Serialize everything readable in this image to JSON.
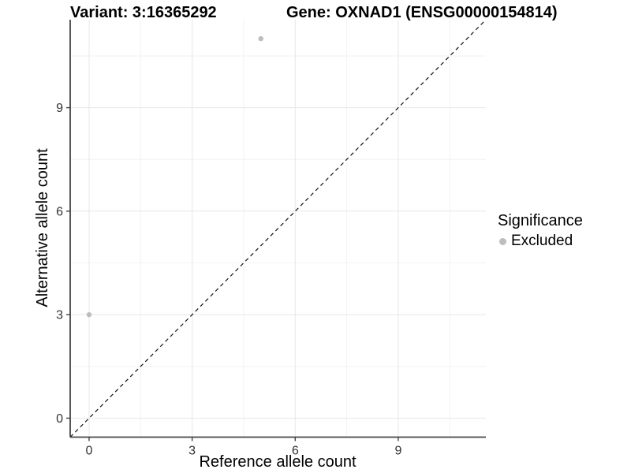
{
  "chart_data": {
    "type": "scatter",
    "title_left": "Variant: 3:16365292",
    "title_right": "Gene: OXNAD1 (ENSG00000154814)",
    "xlabel": "Reference allele count",
    "ylabel": "Alternative allele count",
    "xlim": [
      -0.55,
      11.55
    ],
    "ylim": [
      -0.55,
      11.55
    ],
    "x_ticks": [
      0,
      3,
      6,
      9
    ],
    "y_ticks": [
      0,
      3,
      6,
      9
    ],
    "x_minor_ticks": [
      1.5,
      4.5,
      7.5,
      10.5
    ],
    "y_minor_ticks": [
      1.5,
      4.5,
      7.5,
      10.5
    ],
    "grid": true,
    "identity_line": {
      "style": "dashed",
      "equation": "y = x",
      "color": "#111111"
    },
    "series": [
      {
        "name": "Excluded",
        "color": "#bdbdbd",
        "points": [
          {
            "x": 0,
            "y": 3
          },
          {
            "x": 5,
            "y": 11
          }
        ]
      }
    ],
    "legend": {
      "title": "Significance",
      "position": "right",
      "items": [
        {
          "label": "Excluded",
          "color": "#bdbdbd"
        }
      ]
    },
    "colors": {
      "background": "#ffffff",
      "grid_major": "#e7e7e7",
      "grid_minor": "#f2f2f2",
      "axis": "#444444",
      "tick_text": "#333333"
    }
  }
}
